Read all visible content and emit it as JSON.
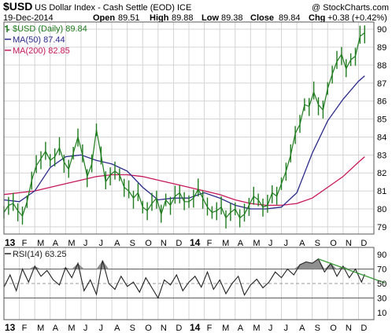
{
  "header": {
    "symbol": "$USD",
    "name": "US Dollar Index - Cash Settle (EOD) ICE",
    "watermark": "@ StockCharts.com",
    "date": "19-Dec-2014",
    "open_label": "Open",
    "open": "89.51",
    "high_label": "High",
    "high": "89.88",
    "low_label": "Low",
    "low": "89.38",
    "close_label": "Close",
    "close": "89.84",
    "chg_label": "Chg",
    "chg": "+0.38 (+0.42%)"
  },
  "colors": {
    "price": "#1e7b1e",
    "ma50": "#2a2a8a",
    "ma200": "#c8185a",
    "rsi": "#222222",
    "rsi_fill": "#8f8f8f",
    "trendline": "#3a9b3a"
  },
  "chart_data": [
    {
      "type": "line",
      "panel": "price",
      "legend": [
        {
          "label": "$USD (Daily) 89.84",
          "color": "#1e7b1e",
          "icon": "price-bar-icon"
        },
        {
          "label": "MA(50) 87.44",
          "color": "#2a2a8a",
          "icon": "line-icon"
        },
        {
          "label": "MA(200) 82.85",
          "color": "#c8185a",
          "icon": "line-icon"
        }
      ],
      "legend_position": "top-left",
      "x_months": [
        "13",
        "F",
        "M",
        "A",
        "M",
        "J",
        "J",
        "A",
        "S",
        "O",
        "N",
        "D",
        "14",
        "F",
        "M",
        "A",
        "M",
        "J",
        "J",
        "A",
        "S",
        "O",
        "N",
        "D"
      ],
      "xlim": [
        0,
        24
      ],
      "ylim": [
        78.6,
        90.4
      ],
      "y_ticks": [
        79,
        80,
        81,
        82,
        83,
        84,
        85,
        86,
        87,
        88,
        89,
        90
      ],
      "y_axis_side": "right",
      "grid": true,
      "series": [
        {
          "name": "$USD (Daily) 89.84",
          "x": [
            0,
            0.3,
            0.6,
            0.9,
            1.2,
            1.5,
            1.8,
            2.1,
            2.4,
            2.7,
            3.0,
            3.3,
            3.6,
            3.9,
            4.2,
            4.5,
            4.8,
            5.1,
            5.4,
            5.7,
            6.0,
            6.3,
            6.6,
            6.9,
            7.2,
            7.5,
            7.8,
            8.1,
            8.4,
            8.7,
            9.0,
            9.3,
            9.6,
            9.9,
            10.2,
            10.5,
            10.8,
            11.1,
            11.4,
            11.7,
            12.0,
            12.3,
            12.6,
            12.9,
            13.2,
            13.5,
            13.8,
            14.1,
            14.4,
            14.7,
            15.0,
            15.3,
            15.6,
            15.9,
            16.2,
            16.5,
            16.8,
            17.1,
            17.4,
            17.7,
            18.0,
            18.3,
            18.6,
            18.9,
            19.2,
            19.5,
            19.8,
            20.1,
            20.4,
            20.7,
            21.0,
            21.3,
            21.6,
            21.9,
            22.2,
            22.5,
            22.8,
            23.1,
            23.4
          ],
          "values": [
            79.8,
            80.2,
            80.3,
            79.9,
            79.6,
            80.4,
            81.6,
            82.4,
            82.8,
            83.2,
            82.7,
            82.9,
            83.4,
            82.6,
            82.2,
            83.1,
            84.0,
            83.0,
            81.8,
            82.5,
            84.4,
            83.0,
            81.5,
            81.9,
            82.1,
            81.9,
            81.2,
            81.0,
            80.6,
            80.9,
            80.1,
            79.9,
            80.3,
            80.6,
            79.7,
            80.5,
            80.2,
            80.7,
            80.9,
            80.4,
            80.4,
            80.6,
            81.1,
            80.6,
            80.1,
            79.8,
            79.9,
            80.1,
            79.5,
            79.8,
            80.0,
            79.5,
            79.7,
            80.2,
            80.7,
            80.5,
            80.1,
            80.2,
            80.9,
            80.7,
            81.4,
            82.1,
            83.0,
            84.2,
            84.7,
            85.8,
            85.7,
            86.5,
            85.8,
            85.5,
            86.7,
            87.5,
            88.2,
            88.6,
            87.8,
            88.3,
            88.5,
            89.6,
            89.8
          ]
        },
        {
          "name": "MA(50) 87.44",
          "x": [
            0,
            1,
            2,
            3,
            4,
            5,
            6,
            7,
            8,
            9,
            10,
            11,
            12,
            13,
            14,
            15,
            16,
            17,
            18,
            19,
            20,
            21,
            22,
            23,
            23.4
          ],
          "values": [
            80.5,
            80.4,
            81.0,
            82.3,
            82.9,
            83.0,
            82.7,
            82.5,
            82.1,
            81.2,
            80.5,
            80.6,
            80.6,
            80.9,
            80.6,
            80.2,
            80.0,
            80.0,
            80.1,
            80.9,
            83.1,
            84.9,
            86.1,
            87.1,
            87.4
          ]
        },
        {
          "name": "MA(200) 82.85",
          "x": [
            0,
            1,
            2,
            3,
            4,
            5,
            6,
            7,
            8,
            9,
            10,
            11,
            12,
            13,
            14,
            15,
            16,
            17,
            18,
            19,
            20,
            21,
            22,
            23,
            23.4
          ],
          "values": [
            80.8,
            80.9,
            81.0,
            81.2,
            81.4,
            81.6,
            81.8,
            81.9,
            81.9,
            81.8,
            81.6,
            81.4,
            81.2,
            81.0,
            80.8,
            80.5,
            80.3,
            80.2,
            80.2,
            80.3,
            80.6,
            81.2,
            81.8,
            82.6,
            82.9
          ]
        }
      ]
    },
    {
      "type": "line",
      "panel": "rsi",
      "legend": [
        {
          "label": "RSI(14) 63.25",
          "color": "#222222",
          "icon": "line-icon"
        }
      ],
      "legend_position": "top-left",
      "x_months": [
        "13",
        "F",
        "M",
        "A",
        "M",
        "J",
        "J",
        "A",
        "S",
        "O",
        "N",
        "D",
        "14",
        "F",
        "M",
        "A",
        "M",
        "J",
        "J",
        "A",
        "S",
        "O",
        "N",
        "D"
      ],
      "xlim": [
        0,
        24
      ],
      "ylim": [
        0,
        100
      ],
      "y_ticks": [
        10,
        30,
        50,
        70,
        90
      ],
      "reference_lines": [
        30,
        50,
        70
      ],
      "grid": true,
      "trendline": {
        "x": [
          20.4,
          24
        ],
        "values": [
          84,
          53
        ]
      },
      "series": [
        {
          "name": "RSI(14) 63.25",
          "x": [
            0,
            0.4,
            0.8,
            1.2,
            1.6,
            2.0,
            2.4,
            2.8,
            3.2,
            3.6,
            4.0,
            4.4,
            4.8,
            5.2,
            5.6,
            6.0,
            6.4,
            6.8,
            7.2,
            7.6,
            8.0,
            8.4,
            8.8,
            9.2,
            9.6,
            10.0,
            10.4,
            10.8,
            11.2,
            11.6,
            12.0,
            12.4,
            12.8,
            13.2,
            13.6,
            14.0,
            14.4,
            14.8,
            15.2,
            15.6,
            16.0,
            16.4,
            16.8,
            17.2,
            17.6,
            18.0,
            18.4,
            18.8,
            19.2,
            19.6,
            20.0,
            20.4,
            20.8,
            21.2,
            21.6,
            22.0,
            22.4,
            22.8,
            23.2,
            23.4
          ],
          "values": [
            45,
            62,
            40,
            70,
            52,
            74,
            60,
            68,
            55,
            48,
            72,
            58,
            78,
            40,
            55,
            35,
            82,
            50,
            42,
            60,
            46,
            52,
            38,
            58,
            44,
            30,
            55,
            48,
            62,
            40,
            52,
            60,
            45,
            66,
            42,
            55,
            36,
            50,
            60,
            34,
            48,
            56,
            44,
            52,
            66,
            58,
            70,
            62,
            76,
            80,
            78,
            84,
            66,
            78,
            60,
            74,
            58,
            70,
            52,
            63
          ]
        }
      ]
    }
  ]
}
